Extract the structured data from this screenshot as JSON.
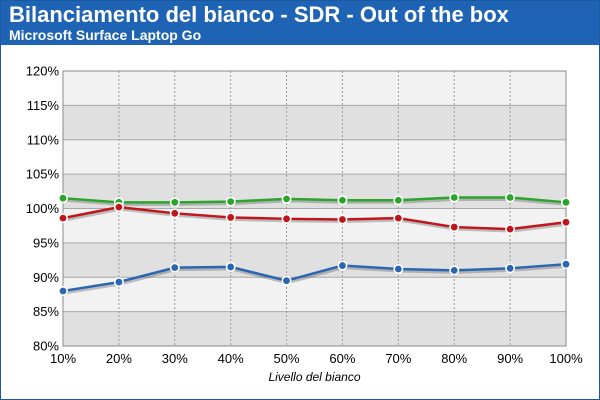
{
  "header": {
    "title": "Bilanciamento del bianco - SDR - Out of the box",
    "subtitle": "Microsoft Surface Laptop Go"
  },
  "colors": {
    "header_bg": "#1f63b5",
    "band_dark": "#e0e0e0",
    "band_light": "#f2f2f2"
  },
  "chart_data": {
    "type": "line",
    "title": "Bilanciamento del bianco - SDR - Out of the box",
    "subtitle": "Microsoft Surface Laptop Go",
    "xlabel": "Livello del bianco",
    "ylabel": "",
    "categories": [
      "10%",
      "20%",
      "30%",
      "40%",
      "50%",
      "60%",
      "70%",
      "80%",
      "90%",
      "100%"
    ],
    "yticks": [
      "80%",
      "85%",
      "90%",
      "95%",
      "100%",
      "105%",
      "110%",
      "115%",
      "120%"
    ],
    "ylim": [
      80,
      120
    ],
    "grid": true,
    "series": [
      {
        "color": "#2aa52a",
        "values": [
          101.5,
          100.9,
          100.9,
          101.0,
          101.4,
          101.2,
          101.2,
          101.6,
          101.6,
          100.9
        ]
      },
      {
        "color": "#c0161b",
        "values": [
          98.6,
          100.2,
          99.3,
          98.7,
          98.5,
          98.4,
          98.6,
          97.3,
          97.0,
          98.0
        ]
      },
      {
        "color": "#2a66b2",
        "values": [
          88.0,
          89.3,
          91.4,
          91.5,
          89.5,
          91.7,
          91.2,
          91.0,
          91.3,
          91.9
        ]
      }
    ]
  }
}
